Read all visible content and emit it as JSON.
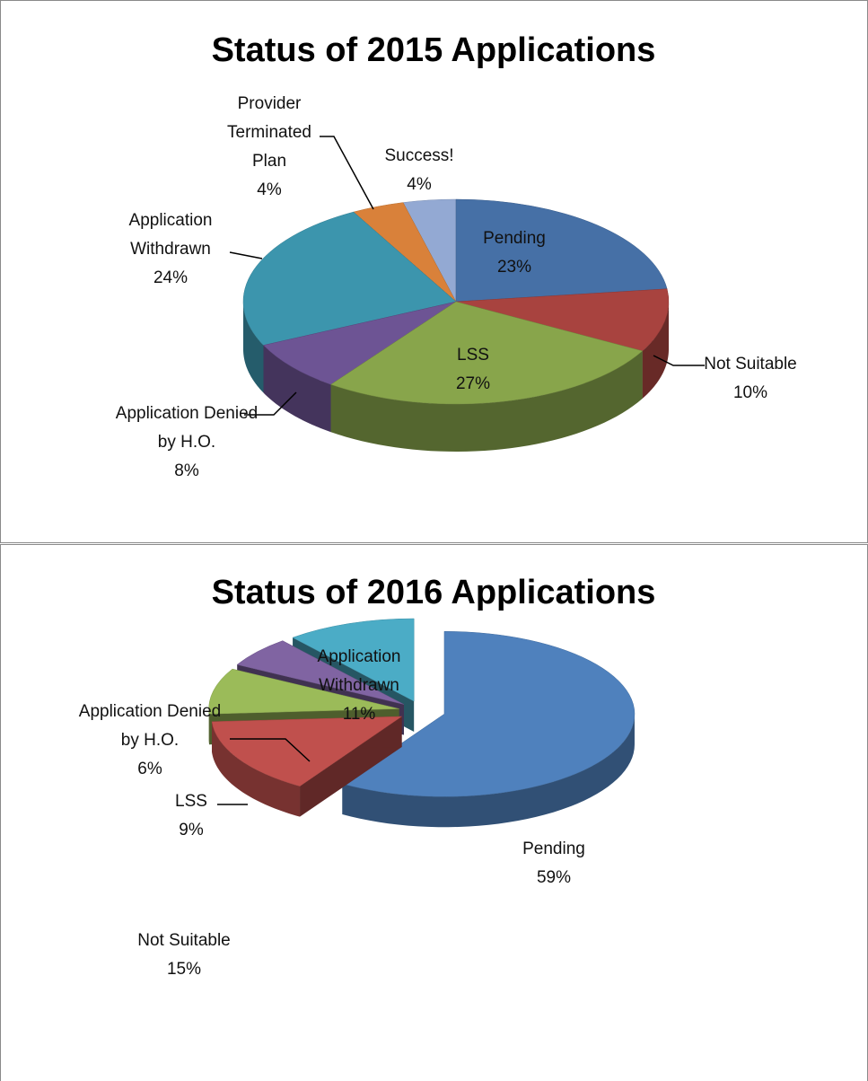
{
  "chart_data": [
    {
      "type": "pie",
      "title": "Status of 2015 Applications",
      "categories": [
        "Pending",
        "Not Suitable",
        "LSS",
        "Application Denied by H.O.",
        "Application Withdrawn",
        "Provider Terminated Plan",
        "Success!"
      ],
      "values": [
        23,
        10,
        27,
        8,
        24,
        4,
        4
      ],
      "value_labels": [
        "23%",
        "10%",
        "27%",
        "8%",
        "24%",
        "4%",
        "4%"
      ],
      "colors": [
        "#4670a6",
        "#a8433f",
        "#88a54b",
        "#6d5494",
        "#3c95ad",
        "#d9813a",
        "#93a9d3"
      ]
    },
    {
      "type": "pie",
      "title": "Status of 2016 Applications",
      "categories": [
        "Pending",
        "Not Suitable",
        "LSS",
        "Application Denied by H.O.",
        "Application Withdrawn"
      ],
      "values": [
        59,
        15,
        9,
        6,
        11
      ],
      "value_labels": [
        "59%",
        "15%",
        "9%",
        "6%",
        "11%"
      ],
      "colors": [
        "#4f81bd",
        "#c0504d",
        "#9bbb59",
        "#8064a2",
        "#4bacc6"
      ]
    }
  ]
}
